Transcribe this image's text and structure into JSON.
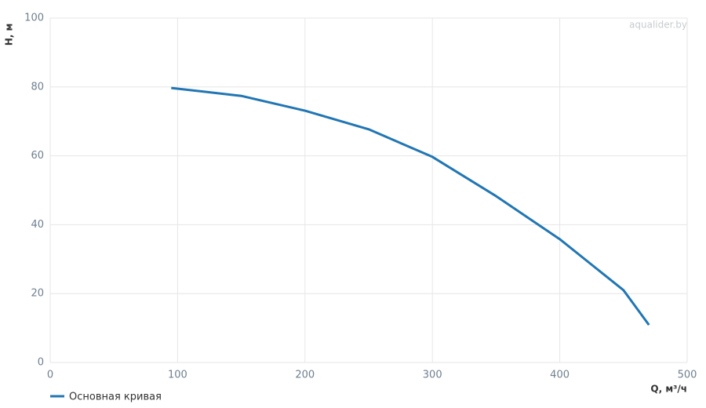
{
  "chart_data": {
    "type": "line",
    "x_label": "Q, м³/ч",
    "y_label": "H, м",
    "watermark": "aqualider.by",
    "x": [
      95,
      150,
      200,
      250,
      300,
      350,
      400,
      450,
      470
    ],
    "series": [
      {
        "name": "Основная кривая",
        "color": "#2176b3",
        "values": [
          79.7,
          77.4,
          73.1,
          67.7,
          59.7,
          48.3,
          35.8,
          21,
          10.9
        ]
      }
    ],
    "xlim": [
      0,
      500
    ],
    "xticks": [
      0,
      100,
      200,
      300,
      400,
      500
    ],
    "ylim": [
      0,
      100
    ],
    "yticks": [
      0,
      20,
      40,
      60,
      80,
      100
    ],
    "grid": true
  }
}
